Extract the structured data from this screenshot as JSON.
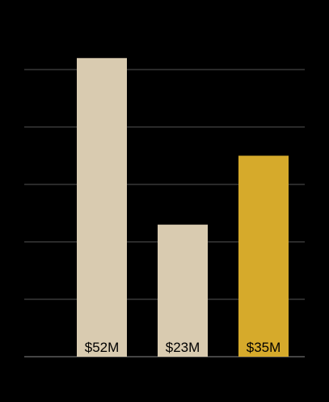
{
  "chart_data": {
    "type": "bar",
    "categories": [
      "",
      "",
      ""
    ],
    "values": [
      52,
      23,
      35
    ],
    "data_labels": [
      "$52M",
      "$23M",
      "$35M"
    ],
    "bar_colors": [
      "#d9cbb0",
      "#d9cbb0",
      "#d6aa2b"
    ],
    "label_color": "#000000",
    "background": "#000000",
    "grid_color": "#555555",
    "baseline_color": "#888888",
    "grid": true,
    "ylim": [
      0,
      50
    ],
    "yticks": [
      0,
      10,
      20,
      30,
      40,
      50
    ],
    "title": "",
    "xlabel": "",
    "ylabel": ""
  }
}
